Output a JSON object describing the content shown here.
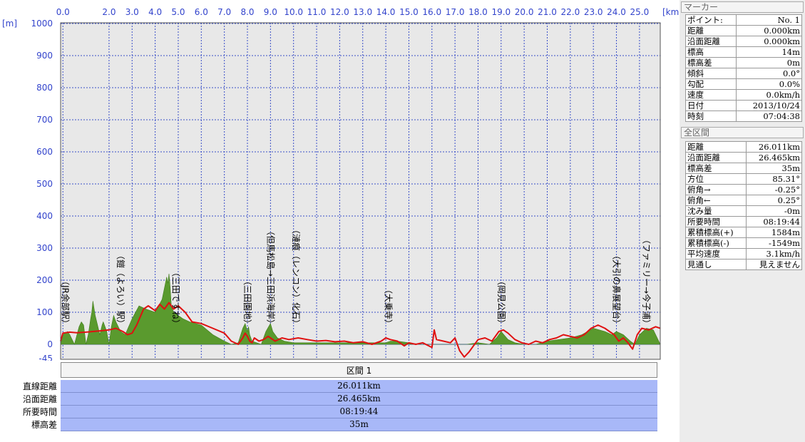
{
  "chart_data": {
    "type": "area",
    "x_unit": "[km]",
    "y_unit": "[m]",
    "xlim": [
      -0.1,
      25.9
    ],
    "ylim": [
      -45,
      1000
    ],
    "x_ticks": [
      "0.0",
      "2.0",
      "3.0",
      "4.0",
      "5.0",
      "6.0",
      "7.0",
      "8.0",
      "9.0",
      "10.0",
      "11.0",
      "12.0",
      "13.0",
      "14.0",
      "15.0",
      "16.0",
      "17.0",
      "18.0",
      "19.0",
      "20.0",
      "21.0",
      "22.0",
      "23.0",
      "24.0",
      "25.0"
    ],
    "y_ticks": [
      "1000",
      "900",
      "800",
      "700",
      "600",
      "500",
      "400",
      "300",
      "200",
      "100",
      "0",
      "-45"
    ],
    "grid": true,
    "series": [
      {
        "name": "",
        "kind": "area",
        "color": "#5a9a2e",
        "x": [
          -0.1,
          0.0,
          0.2,
          0.3,
          0.5,
          0.7,
          0.8,
          0.9,
          1.0,
          1.1,
          1.2,
          1.25,
          1.3,
          1.4,
          1.5,
          1.6,
          1.7,
          1.75,
          1.8,
          1.9,
          2.0,
          2.1,
          2.2,
          2.3,
          2.5,
          2.7,
          3.0,
          3.3,
          3.6,
          4.0,
          4.3,
          4.5,
          4.55,
          4.6,
          4.65,
          4.7,
          4.8,
          5.0,
          5.2,
          5.5,
          6.0,
          6.5,
          7.0,
          7.3,
          7.6,
          7.8,
          7.9,
          8.0,
          8.05,
          8.1,
          8.2,
          8.4,
          8.6,
          8.8,
          9.0,
          9.1,
          9.3,
          9.6,
          10.0,
          10.5,
          11.0,
          12.0,
          13.0,
          14.0,
          14.2,
          14.5,
          15.0,
          15.5,
          16.0,
          16.5,
          17.0,
          17.5,
          18.0,
          18.5,
          18.8,
          19.0,
          19.3,
          19.6,
          20.0,
          20.5,
          21.0,
          21.5,
          22.0,
          22.5,
          23.0,
          23.5,
          23.8,
          24.0,
          24.3,
          24.6,
          24.8,
          25.0,
          25.3,
          25.6,
          25.9
        ],
        "y": [
          0,
          30,
          40,
          30,
          0,
          55,
          70,
          60,
          0,
          30,
          80,
          100,
          135,
          90,
          60,
          30,
          60,
          70,
          60,
          40,
          0,
          55,
          90,
          70,
          40,
          30,
          80,
          120,
          110,
          100,
          140,
          210,
          190,
          220,
          180,
          120,
          100,
          90,
          80,
          70,
          60,
          30,
          10,
          0,
          5,
          50,
          65,
          40,
          55,
          30,
          10,
          5,
          0,
          40,
          65,
          40,
          20,
          10,
          5,
          5,
          5,
          5,
          5,
          5,
          10,
          10,
          5,
          0,
          0,
          0,
          0,
          0,
          5,
          0,
          20,
          40,
          15,
          5,
          0,
          0,
          10,
          15,
          20,
          30,
          50,
          40,
          30,
          40,
          30,
          10,
          0,
          30,
          50,
          45,
          0
        ]
      },
      {
        "name": "",
        "kind": "line",
        "color": "#e01010",
        "x": [
          -0.1,
          0.0,
          0.3,
          0.6,
          1.0,
          1.3,
          1.6,
          2.0,
          2.3,
          2.6,
          2.8,
          3.0,
          3.2,
          3.5,
          3.7,
          4.0,
          4.2,
          4.4,
          4.6,
          4.8,
          5.0,
          5.3,
          5.6,
          6.0,
          6.5,
          7.0,
          7.3,
          7.6,
          7.8,
          7.9,
          8.0,
          8.1,
          8.2,
          8.3,
          8.5,
          8.7,
          8.9,
          9.2,
          9.5,
          9.8,
          10.2,
          10.6,
          11.0,
          11.4,
          11.8,
          12.2,
          12.6,
          13.0,
          13.4,
          13.8,
          14.0,
          14.2,
          14.5,
          14.8,
          15.0,
          15.3,
          15.6,
          16.0,
          16.1,
          16.2,
          16.5,
          16.8,
          17.0,
          17.2,
          17.4,
          17.6,
          17.8,
          18.0,
          18.3,
          18.6,
          18.9,
          19.1,
          19.3,
          19.6,
          19.9,
          20.2,
          20.5,
          20.8,
          21.1,
          21.4,
          21.7,
          22.0,
          22.3,
          22.6,
          22.9,
          23.2,
          23.5,
          23.7,
          23.9,
          24.1,
          24.3,
          24.5,
          24.7,
          24.9,
          25.1,
          25.4,
          25.7,
          25.9
        ],
        "y": [
          10,
          35,
          38,
          36,
          38,
          40,
          42,
          45,
          50,
          40,
          30,
          35,
          60,
          110,
          120,
          105,
          125,
          110,
          130,
          110,
          120,
          100,
          70,
          65,
          50,
          35,
          10,
          0,
          20,
          35,
          25,
          10,
          5,
          20,
          10,
          15,
          25,
          10,
          20,
          15,
          20,
          15,
          10,
          12,
          8,
          10,
          5,
          8,
          0,
          10,
          20,
          15,
          10,
          -5,
          5,
          0,
          5,
          -10,
          45,
          15,
          10,
          5,
          20,
          -20,
          -40,
          -25,
          -5,
          15,
          20,
          10,
          40,
          45,
          35,
          15,
          5,
          0,
          10,
          5,
          15,
          20,
          30,
          25,
          20,
          30,
          50,
          60,
          50,
          40,
          30,
          10,
          20,
          5,
          -15,
          30,
          50,
          45,
          55,
          50
        ]
      }
    ],
    "waypoints": [
      {
        "x": 0.1,
        "label": "（JR余部駅）"
      },
      {
        "x": 2.5,
        "label": "（鎧（よろい）駅）"
      },
      {
        "x": 4.9,
        "label": "（三田ですね）"
      },
      {
        "x": 8.0,
        "label": "（三田園地）"
      },
      {
        "x": 9.0,
        "label": "（但馬松島→三田浜海岸）"
      },
      {
        "x": 10.1,
        "label": "（漣痕（レンコン）化石）"
      },
      {
        "x": 14.1,
        "label": "（大乗寺）"
      },
      {
        "x": 19.0,
        "label": "（岡見公園）"
      },
      {
        "x": 24.0,
        "label": "（大引の鼻展望台）"
      },
      {
        "x": 25.3,
        "label": "（ファミリー→今子浦）"
      }
    ]
  },
  "section_panel": {
    "header": "区間 1",
    "rows": [
      {
        "label": "直線距離",
        "value": "26.011km"
      },
      {
        "label": "沿面距離",
        "value": "26.465km"
      },
      {
        "label": "所要時間",
        "value": "08:19:44"
      },
      {
        "label": "標高差",
        "value": "35m"
      }
    ]
  },
  "marker_panel": {
    "title": "マーカー",
    "rows": [
      {
        "k": "ポイント:",
        "v": "No. 1"
      },
      {
        "k": "距離",
        "v": "0.000km"
      },
      {
        "k": "沿面距離",
        "v": "0.000km"
      },
      {
        "k": "標高",
        "v": "14m"
      },
      {
        "k": "標高差",
        "v": "0m"
      },
      {
        "k": "傾斜",
        "v": "0.0°"
      },
      {
        "k": "勾配",
        "v": "0.0%"
      },
      {
        "k": "速度",
        "v": "0.0km/h"
      },
      {
        "k": "日付",
        "v": "2013/10/24"
      },
      {
        "k": "時刻",
        "v": "07:04:38"
      }
    ]
  },
  "total_panel": {
    "title": "全区間",
    "rows": [
      {
        "k": "距離",
        "v": "26.011km"
      },
      {
        "k": "沿面距離",
        "v": "26.465km"
      },
      {
        "k": "標高差",
        "v": "35m"
      },
      {
        "k": "方位",
        "v": "85.31°"
      },
      {
        "k": "俯角→",
        "v": "-0.25°"
      },
      {
        "k": "俯角←",
        "v": "0.25°"
      },
      {
        "k": "沈み量",
        "v": "-0m"
      },
      {
        "k": "所要時間",
        "v": "08:19:44"
      },
      {
        "k": "累積標高(+)",
        "v": "1584m"
      },
      {
        "k": "累積標高(-)",
        "v": "-1549m"
      },
      {
        "k": "平均速度",
        "v": "3.1km/h"
      },
      {
        "k": "見通し",
        "v": "見えません"
      }
    ]
  }
}
